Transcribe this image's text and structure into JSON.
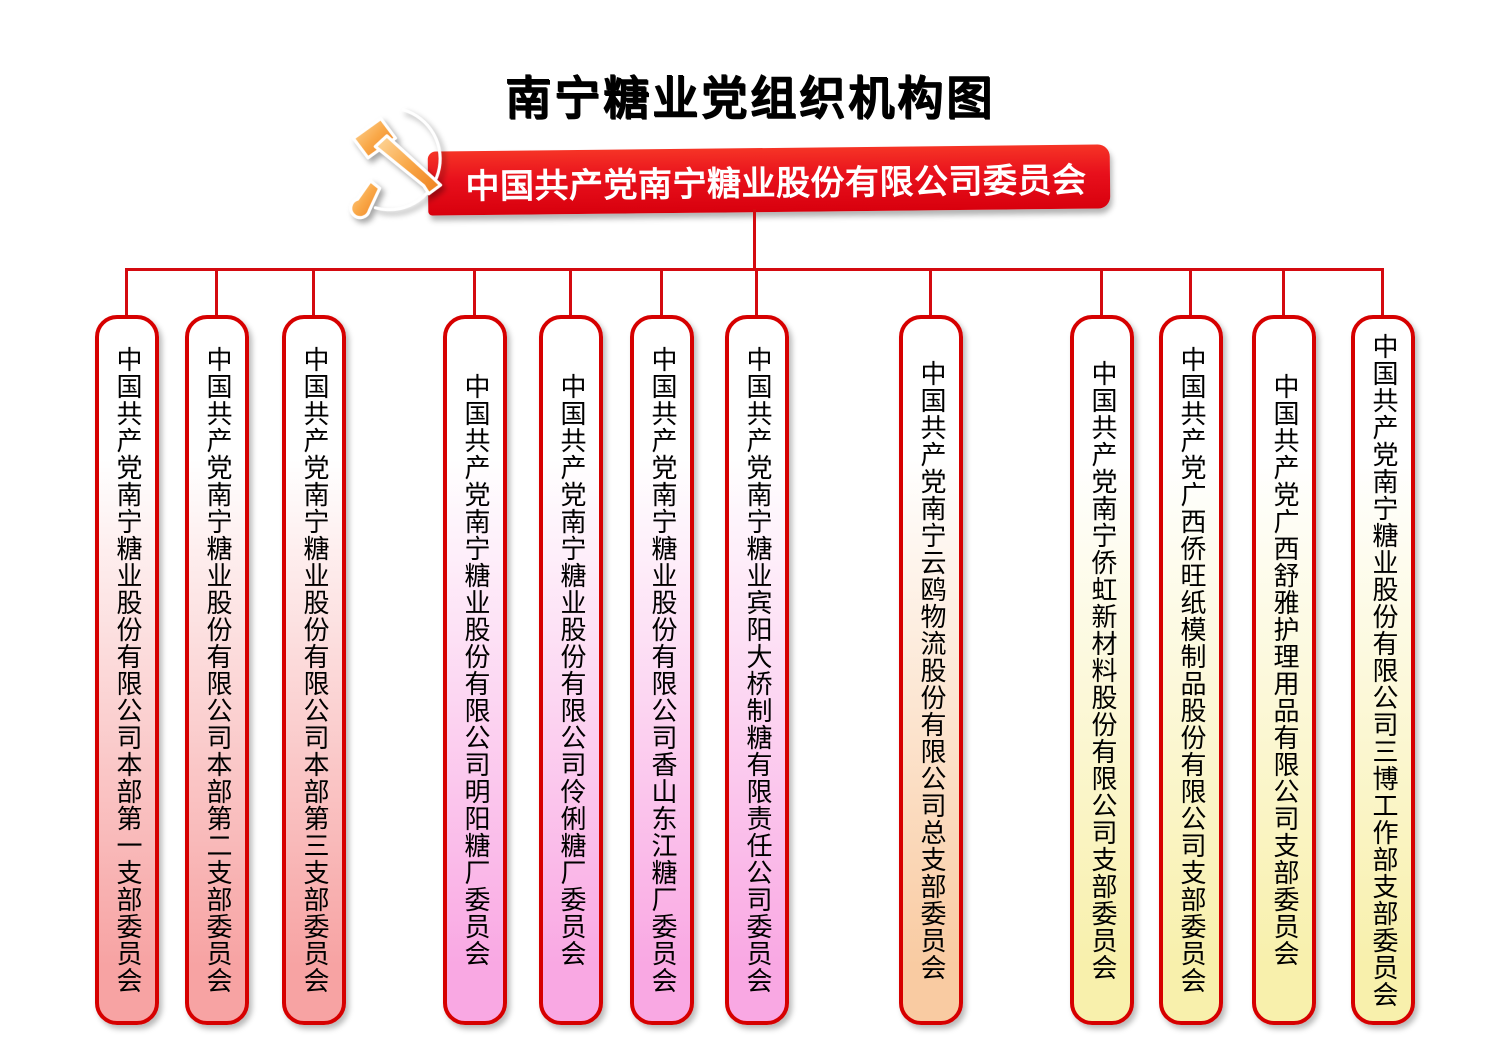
{
  "page": {
    "title": "南宁糖业党组织机构图"
  },
  "root": {
    "label": "中国共产党南宁糖业股份有限公司委员会"
  },
  "icons": {
    "party_emblem": "hammer-and-sickle"
  },
  "palette": {
    "banner_red": "#E8101C",
    "connector_red": "#D40A10",
    "box_border_red": "#D60000",
    "emblem_orange": "#F08C1E",
    "groups": {
      "red": "#F7A3A3",
      "magenta": "#F9A8E3",
      "orange": "#F9CBA2",
      "yellow": "#F8F0AC"
    }
  },
  "branches": [
    {
      "label": "中国共产党南宁糖业股份有限公司本部第一支部委员会",
      "group": "red"
    },
    {
      "label": "中国共产党南宁糖业股份有限公司本部第二支部委员会",
      "group": "red"
    },
    {
      "label": "中国共产党南宁糖业股份有限公司本部第三支部委员会",
      "group": "red"
    },
    {
      "label": "中国共产党南宁糖业股份有限公司明阳糖厂委员会",
      "group": "magenta"
    },
    {
      "label": "中国共产党南宁糖业股份有限公司伶俐糖厂委员会",
      "group": "magenta"
    },
    {
      "label": "中国共产党南宁糖业股份有限公司香山东江糖厂委员会",
      "group": "magenta"
    },
    {
      "label": "中国共产党南宁糖业宾阳大桥制糖有限责任公司委员会",
      "group": "magenta"
    },
    {
      "label": "中国共产党南宁云鸥物流股份有限公司总支部委员会",
      "group": "orange"
    },
    {
      "label": "中国共产党南宁侨虹新材料股份有限公司支部委员会",
      "group": "yellow"
    },
    {
      "label": "中国共产党广西侨旺纸模制品股份有限公司支部委员会",
      "group": "yellow"
    },
    {
      "label": "中国共产党广西舒雅护理用品有限公司支部委员会",
      "group": "yellow"
    },
    {
      "label": "中国共产党南宁糖业股份有限公司三博工作部支部委员会",
      "group": "yellow"
    }
  ]
}
